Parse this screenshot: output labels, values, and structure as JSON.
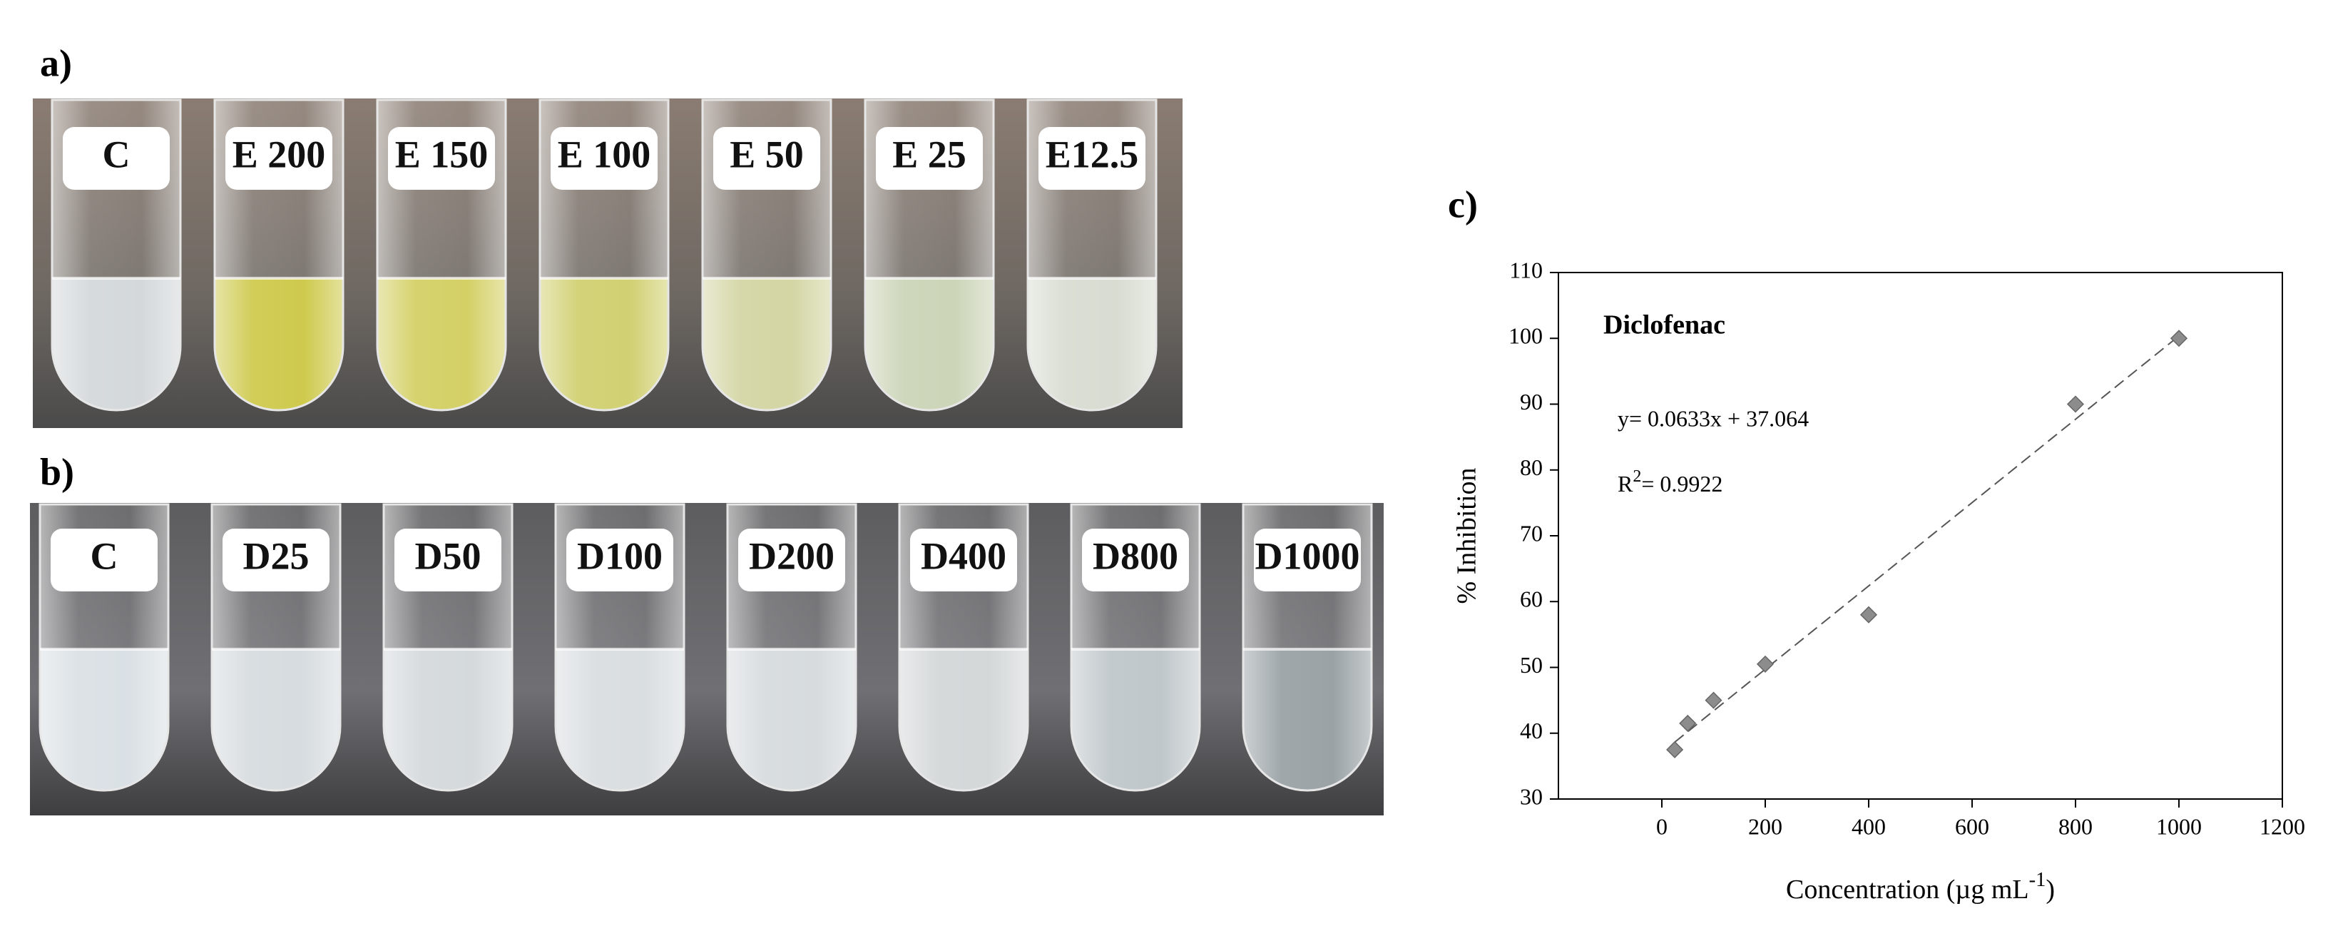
{
  "panel_a": {
    "label": "a)",
    "tubes": [
      {
        "label": "C",
        "color": "#cfd4d6"
      },
      {
        "label": "E 200",
        "color": "#c9c43a"
      },
      {
        "label": "E 150",
        "color": "#cfcb55"
      },
      {
        "label": "E 100",
        "color": "#cccb62"
      },
      {
        "label": "E 50",
        "color": "#cfd19a"
      },
      {
        "label": "E 25",
        "color": "#c6d0b0"
      },
      {
        "label": "E12.5",
        "color": "#d4d8cc"
      }
    ]
  },
  "panel_b": {
    "label": "b)",
    "tubes": [
      {
        "label": "C",
        "color": "#d6dde2"
      },
      {
        "label": "D25",
        "color": "#d2d8dc"
      },
      {
        "label": "D50",
        "color": "#d0d5d8"
      },
      {
        "label": "D100",
        "color": "#d5dadd"
      },
      {
        "label": "D200",
        "color": "#d2d7da"
      },
      {
        "label": "D400",
        "color": "#cfd3d4"
      },
      {
        "label": "D800",
        "color": "#b9c1c5"
      },
      {
        "label": "D1000",
        "color": "#8f989c"
      }
    ]
  },
  "chart_data": {
    "type": "scatter",
    "panel_label": "c)",
    "title": "Diclofenac",
    "equation": "y= 0.0633x + 37.064",
    "r_squared": {
      "base": "R",
      "sup": "2",
      "rest": "= 0.9922"
    },
    "fit": {
      "slope": 0.0633,
      "intercept": 37.064
    },
    "y_label": "% Inhibition",
    "x_label": {
      "base": "Concentration (µg mL",
      "sup": "-1",
      "rest": ")"
    },
    "x": [
      25,
      50,
      100,
      200,
      400,
      800,
      1000
    ],
    "series": [
      {
        "name": "Diclofenac",
        "color": "#8c8c8c",
        "values": [
          37.5,
          41.5,
          45,
          50.5,
          58,
          90,
          100
        ]
      }
    ],
    "xlim": [
      -200,
      1200
    ],
    "xticks": [
      0,
      200,
      400,
      600,
      800,
      1000,
      1200
    ],
    "ylim": [
      30,
      110
    ],
    "yticks": [
      30,
      40,
      50,
      60,
      70,
      80,
      90,
      100,
      110
    ]
  }
}
